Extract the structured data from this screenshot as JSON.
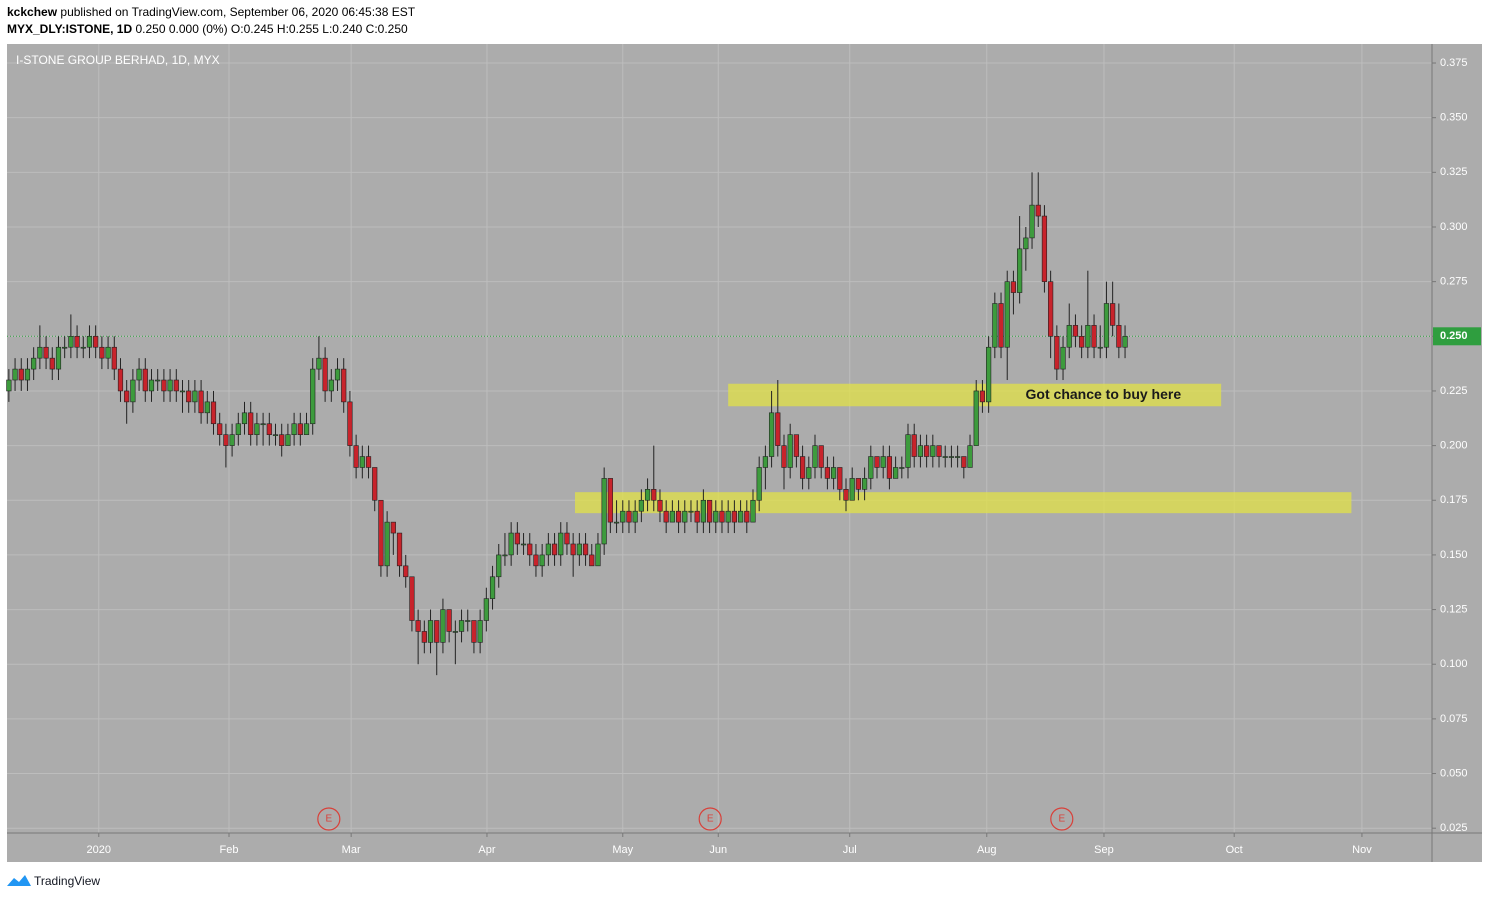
{
  "header": {
    "author": "kckchew",
    "published": "published on TradingView.com, September 06, 2020 06:45:38 EST",
    "symbol": "MYX_DLY:ISTONE, 1D",
    "quote": "0.250 0.000 (0%) O:0.245 H:0.255 L:0.240 C:0.250"
  },
  "footer": {
    "brand": "TradingView"
  },
  "chart_data": {
    "type": "candlestick",
    "title": "I-STONE GROUP BERHAD, 1D, MYX",
    "up_color": "#3d9b3d",
    "down_color": "#c8232b",
    "background": "#acacac",
    "grid": true,
    "xlim": [
      -0.3,
      229.5
    ],
    "ylim": [
      0.0228,
      0.3837
    ],
    "xticks": [
      {
        "value": 14.5,
        "label": "2020"
      },
      {
        "value": 35.5,
        "label": "Feb"
      },
      {
        "value": 55.2,
        "label": "Mar"
      },
      {
        "value": 77.1,
        "label": "Apr"
      },
      {
        "value": 99,
        "label": "May"
      },
      {
        "value": 114.4,
        "label": "Jun"
      },
      {
        "value": 135.6,
        "label": "Jul"
      },
      {
        "value": 157.7,
        "label": "Aug"
      },
      {
        "value": 176.6,
        "label": "Sep"
      },
      {
        "value": 197.6,
        "label": "Oct"
      },
      {
        "value": 218.2,
        "label": "Nov"
      }
    ],
    "yticks": [
      {
        "value": 0.025,
        "label": "0.025"
      },
      {
        "value": 0.05,
        "label": "0.050"
      },
      {
        "value": 0.075,
        "label": "0.075"
      },
      {
        "value": 0.1,
        "label": "0.100"
      },
      {
        "value": 0.125,
        "label": "0.125"
      },
      {
        "value": 0.15,
        "label": "0.150"
      },
      {
        "value": 0.175,
        "label": "0.175"
      },
      {
        "value": 0.2,
        "label": "0.200"
      },
      {
        "value": 0.225,
        "label": "0.225"
      },
      {
        "value": 0.25,
        "label": "0.250"
      },
      {
        "value": 0.275,
        "label": "0.275"
      },
      {
        "value": 0.3,
        "label": "0.300"
      },
      {
        "value": 0.325,
        "label": "0.325"
      },
      {
        "value": 0.35,
        "label": "0.350"
      },
      {
        "value": 0.375,
        "label": "0.375"
      }
    ],
    "last_price": {
      "value": 0.25,
      "label": "0.250",
      "color": "#2f9e3f"
    },
    "zones": [
      {
        "x": [
          116,
          195.5
        ],
        "y": [
          0.218,
          0.2283
        ],
        "color": "#dede4e"
      },
      {
        "x": [
          91.3,
          216.5
        ],
        "y": [
          0.1691,
          0.1787
        ],
        "color": "#dede4e"
      }
    ],
    "annotation": {
      "text": "Got chance to buy here",
      "x": 176.5,
      "y": 0.223
    },
    "events": [
      {
        "x": 51.6,
        "label": "E"
      },
      {
        "x": 113.1,
        "label": "E"
      },
      {
        "x": 169.8,
        "label": "E"
      }
    ],
    "ohlc": [
      [
        0.225,
        0.235,
        0.22,
        0.23
      ],
      [
        0.23,
        0.24,
        0.225,
        0.235
      ],
      [
        0.235,
        0.24,
        0.225,
        0.23
      ],
      [
        0.23,
        0.24,
        0.225,
        0.235
      ],
      [
        0.235,
        0.245,
        0.23,
        0.24
      ],
      [
        0.24,
        0.255,
        0.235,
        0.245
      ],
      [
        0.245,
        0.25,
        0.235,
        0.24
      ],
      [
        0.24,
        0.245,
        0.23,
        0.235
      ],
      [
        0.235,
        0.25,
        0.23,
        0.245
      ],
      [
        0.245,
        0.25,
        0.24,
        0.245
      ],
      [
        0.245,
        0.26,
        0.24,
        0.25
      ],
      [
        0.25,
        0.255,
        0.24,
        0.245
      ],
      [
        0.245,
        0.25,
        0.24,
        0.245
      ],
      [
        0.245,
        0.255,
        0.24,
        0.25
      ],
      [
        0.25,
        0.255,
        0.24,
        0.245
      ],
      [
        0.245,
        0.25,
        0.235,
        0.24
      ],
      [
        0.24,
        0.25,
        0.235,
        0.245
      ],
      [
        0.245,
        0.25,
        0.23,
        0.235
      ],
      [
        0.235,
        0.24,
        0.22,
        0.225
      ],
      [
        0.225,
        0.23,
        0.21,
        0.22
      ],
      [
        0.22,
        0.235,
        0.215,
        0.23
      ],
      [
        0.23,
        0.24,
        0.225,
        0.235
      ],
      [
        0.235,
        0.24,
        0.22,
        0.225
      ],
      [
        0.225,
        0.235,
        0.22,
        0.23
      ],
      [
        0.23,
        0.235,
        0.225,
        0.23
      ],
      [
        0.23,
        0.235,
        0.22,
        0.225
      ],
      [
        0.225,
        0.235,
        0.22,
        0.23
      ],
      [
        0.23,
        0.235,
        0.22,
        0.225
      ],
      [
        0.225,
        0.23,
        0.215,
        0.225
      ],
      [
        0.225,
        0.23,
        0.215,
        0.22
      ],
      [
        0.22,
        0.23,
        0.215,
        0.225
      ],
      [
        0.225,
        0.23,
        0.21,
        0.215
      ],
      [
        0.215,
        0.225,
        0.21,
        0.22
      ],
      [
        0.22,
        0.225,
        0.205,
        0.21
      ],
      [
        0.21,
        0.215,
        0.2,
        0.205
      ],
      [
        0.205,
        0.21,
        0.19,
        0.2
      ],
      [
        0.2,
        0.21,
        0.195,
        0.205
      ],
      [
        0.205,
        0.215,
        0.2,
        0.21
      ],
      [
        0.21,
        0.22,
        0.205,
        0.215
      ],
      [
        0.215,
        0.22,
        0.2,
        0.205
      ],
      [
        0.205,
        0.215,
        0.2,
        0.21
      ],
      [
        0.21,
        0.215,
        0.2,
        0.21
      ],
      [
        0.21,
        0.215,
        0.2,
        0.205
      ],
      [
        0.205,
        0.21,
        0.2,
        0.205
      ],
      [
        0.205,
        0.21,
        0.195,
        0.2
      ],
      [
        0.2,
        0.21,
        0.2,
        0.205
      ],
      [
        0.205,
        0.215,
        0.2,
        0.21
      ],
      [
        0.21,
        0.215,
        0.2,
        0.205
      ],
      [
        0.205,
        0.215,
        0.205,
        0.21
      ],
      [
        0.21,
        0.24,
        0.205,
        0.235
      ],
      [
        0.235,
        0.25,
        0.23,
        0.24
      ],
      [
        0.24,
        0.245,
        0.22,
        0.225
      ],
      [
        0.225,
        0.235,
        0.22,
        0.23
      ],
      [
        0.23,
        0.24,
        0.225,
        0.235
      ],
      [
        0.235,
        0.24,
        0.215,
        0.22
      ],
      [
        0.22,
        0.225,
        0.195,
        0.2
      ],
      [
        0.2,
        0.205,
        0.185,
        0.19
      ],
      [
        0.19,
        0.2,
        0.185,
        0.195
      ],
      [
        0.195,
        0.2,
        0.185,
        0.19
      ],
      [
        0.19,
        0.19,
        0.17,
        0.175
      ],
      [
        0.175,
        0.175,
        0.14,
        0.145
      ],
      [
        0.145,
        0.17,
        0.14,
        0.165
      ],
      [
        0.165,
        0.165,
        0.15,
        0.16
      ],
      [
        0.16,
        0.16,
        0.14,
        0.145
      ],
      [
        0.145,
        0.15,
        0.135,
        0.14
      ],
      [
        0.14,
        0.14,
        0.115,
        0.12
      ],
      [
        0.12,
        0.125,
        0.1,
        0.115
      ],
      [
        0.115,
        0.12,
        0.105,
        0.11
      ],
      [
        0.11,
        0.125,
        0.105,
        0.12
      ],
      [
        0.12,
        0.12,
        0.095,
        0.11
      ],
      [
        0.11,
        0.13,
        0.105,
        0.125
      ],
      [
        0.125,
        0.125,
        0.11,
        0.115
      ],
      [
        0.115,
        0.12,
        0.1,
        0.115
      ],
      [
        0.115,
        0.125,
        0.11,
        0.12
      ],
      [
        0.12,
        0.125,
        0.115,
        0.12
      ],
      [
        0.12,
        0.12,
        0.105,
        0.11
      ],
      [
        0.11,
        0.125,
        0.105,
        0.12
      ],
      [
        0.12,
        0.135,
        0.115,
        0.13
      ],
      [
        0.13,
        0.145,
        0.125,
        0.14
      ],
      [
        0.14,
        0.155,
        0.135,
        0.15
      ],
      [
        0.15,
        0.16,
        0.145,
        0.15
      ],
      [
        0.15,
        0.165,
        0.145,
        0.16
      ],
      [
        0.16,
        0.165,
        0.15,
        0.155
      ],
      [
        0.155,
        0.16,
        0.15,
        0.155
      ],
      [
        0.155,
        0.16,
        0.145,
        0.15
      ],
      [
        0.15,
        0.155,
        0.14,
        0.145
      ],
      [
        0.145,
        0.155,
        0.14,
        0.15
      ],
      [
        0.15,
        0.16,
        0.145,
        0.155
      ],
      [
        0.155,
        0.16,
        0.145,
        0.15
      ],
      [
        0.15,
        0.165,
        0.145,
        0.16
      ],
      [
        0.16,
        0.165,
        0.15,
        0.155
      ],
      [
        0.155,
        0.16,
        0.14,
        0.15
      ],
      [
        0.15,
        0.16,
        0.145,
        0.155
      ],
      [
        0.155,
        0.16,
        0.145,
        0.15
      ],
      [
        0.15,
        0.155,
        0.145,
        0.145
      ],
      [
        0.145,
        0.16,
        0.145,
        0.155
      ],
      [
        0.155,
        0.19,
        0.15,
        0.185
      ],
      [
        0.185,
        0.185,
        0.16,
        0.165
      ],
      [
        0.165,
        0.175,
        0.16,
        0.165
      ],
      [
        0.165,
        0.175,
        0.16,
        0.17
      ],
      [
        0.17,
        0.175,
        0.16,
        0.165
      ],
      [
        0.165,
        0.175,
        0.16,
        0.17
      ],
      [
        0.17,
        0.18,
        0.165,
        0.175
      ],
      [
        0.175,
        0.185,
        0.17,
        0.18
      ],
      [
        0.18,
        0.2,
        0.17,
        0.175
      ],
      [
        0.175,
        0.18,
        0.165,
        0.17
      ],
      [
        0.17,
        0.175,
        0.16,
        0.165
      ],
      [
        0.165,
        0.175,
        0.165,
        0.17
      ],
      [
        0.17,
        0.175,
        0.16,
        0.165
      ],
      [
        0.165,
        0.175,
        0.16,
        0.17
      ],
      [
        0.17,
        0.175,
        0.165,
        0.17
      ],
      [
        0.17,
        0.175,
        0.16,
        0.165
      ],
      [
        0.165,
        0.18,
        0.16,
        0.175
      ],
      [
        0.175,
        0.175,
        0.16,
        0.165
      ],
      [
        0.165,
        0.175,
        0.16,
        0.17
      ],
      [
        0.17,
        0.175,
        0.16,
        0.165
      ],
      [
        0.165,
        0.175,
        0.16,
        0.17
      ],
      [
        0.17,
        0.175,
        0.16,
        0.165
      ],
      [
        0.165,
        0.175,
        0.165,
        0.17
      ],
      [
        0.17,
        0.175,
        0.16,
        0.165
      ],
      [
        0.165,
        0.18,
        0.165,
        0.175
      ],
      [
        0.175,
        0.195,
        0.17,
        0.19
      ],
      [
        0.19,
        0.2,
        0.18,
        0.195
      ],
      [
        0.195,
        0.225,
        0.19,
        0.215
      ],
      [
        0.215,
        0.23,
        0.195,
        0.2
      ],
      [
        0.2,
        0.205,
        0.18,
        0.19
      ],
      [
        0.19,
        0.21,
        0.185,
        0.205
      ],
      [
        0.205,
        0.205,
        0.19,
        0.195
      ],
      [
        0.195,
        0.2,
        0.18,
        0.185
      ],
      [
        0.185,
        0.195,
        0.18,
        0.19
      ],
      [
        0.19,
        0.205,
        0.185,
        0.2
      ],
      [
        0.2,
        0.2,
        0.185,
        0.19
      ],
      [
        0.19,
        0.195,
        0.18,
        0.185
      ],
      [
        0.185,
        0.195,
        0.18,
        0.19
      ],
      [
        0.19,
        0.19,
        0.175,
        0.18
      ],
      [
        0.18,
        0.185,
        0.17,
        0.175
      ],
      [
        0.175,
        0.19,
        0.175,
        0.185
      ],
      [
        0.185,
        0.185,
        0.175,
        0.18
      ],
      [
        0.18,
        0.19,
        0.175,
        0.185
      ],
      [
        0.185,
        0.2,
        0.18,
        0.195
      ],
      [
        0.195,
        0.195,
        0.185,
        0.19
      ],
      [
        0.19,
        0.2,
        0.185,
        0.195
      ],
      [
        0.195,
        0.2,
        0.18,
        0.185
      ],
      [
        0.185,
        0.195,
        0.185,
        0.19
      ],
      [
        0.19,
        0.195,
        0.185,
        0.19
      ],
      [
        0.19,
        0.21,
        0.185,
        0.205
      ],
      [
        0.205,
        0.21,
        0.19,
        0.195
      ],
      [
        0.195,
        0.205,
        0.19,
        0.2
      ],
      [
        0.2,
        0.205,
        0.19,
        0.195
      ],
      [
        0.195,
        0.205,
        0.19,
        0.2
      ],
      [
        0.2,
        0.2,
        0.19,
        0.195
      ],
      [
        0.195,
        0.2,
        0.19,
        0.195
      ],
      [
        0.195,
        0.2,
        0.19,
        0.195
      ],
      [
        0.195,
        0.2,
        0.19,
        0.195
      ],
      [
        0.195,
        0.195,
        0.185,
        0.19
      ],
      [
        0.19,
        0.205,
        0.19,
        0.2
      ],
      [
        0.2,
        0.23,
        0.2,
        0.225
      ],
      [
        0.225,
        0.23,
        0.215,
        0.22
      ],
      [
        0.22,
        0.25,
        0.215,
        0.245
      ],
      [
        0.245,
        0.27,
        0.24,
        0.265
      ],
      [
        0.265,
        0.27,
        0.24,
        0.245
      ],
      [
        0.245,
        0.28,
        0.23,
        0.275
      ],
      [
        0.275,
        0.28,
        0.26,
        0.27
      ],
      [
        0.27,
        0.305,
        0.265,
        0.29
      ],
      [
        0.29,
        0.3,
        0.28,
        0.295
      ],
      [
        0.295,
        0.325,
        0.29,
        0.31
      ],
      [
        0.31,
        0.325,
        0.3,
        0.305
      ],
      [
        0.305,
        0.31,
        0.27,
        0.275
      ],
      [
        0.275,
        0.28,
        0.24,
        0.25
      ],
      [
        0.25,
        0.255,
        0.23,
        0.235
      ],
      [
        0.235,
        0.25,
        0.23,
        0.245
      ],
      [
        0.245,
        0.265,
        0.24,
        0.255
      ],
      [
        0.255,
        0.26,
        0.245,
        0.25
      ],
      [
        0.25,
        0.255,
        0.24,
        0.245
      ],
      [
        0.245,
        0.28,
        0.24,
        0.255
      ],
      [
        0.255,
        0.26,
        0.24,
        0.245
      ],
      [
        0.245,
        0.255,
        0.24,
        0.245
      ],
      [
        0.245,
        0.275,
        0.24,
        0.265
      ],
      [
        0.265,
        0.275,
        0.25,
        0.255
      ],
      [
        0.255,
        0.265,
        0.24,
        0.245
      ],
      [
        0.245,
        0.255,
        0.24,
        0.25
      ]
    ]
  }
}
